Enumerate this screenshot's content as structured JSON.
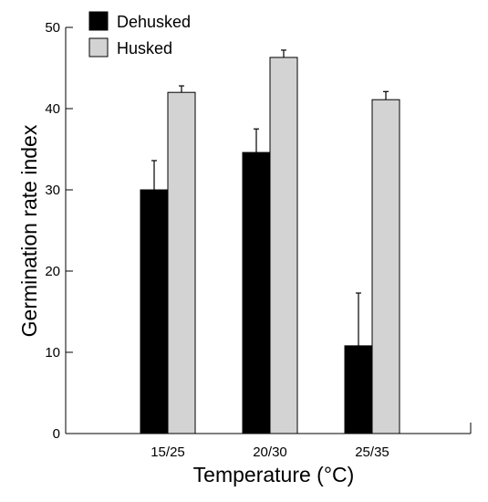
{
  "chart_data": {
    "type": "bar",
    "title": "",
    "xlabel": "Temperature (°C)",
    "ylabel": "Germination rate index",
    "categories": [
      "15/25",
      "20/30",
      "25/35"
    ],
    "ylim": [
      0,
      50
    ],
    "yticks": [
      0,
      10,
      20,
      30,
      40,
      50
    ],
    "grid": false,
    "legend": "top-left",
    "series": [
      {
        "name": "Dehusked",
        "color": "#000000",
        "values": [
          30.0,
          34.6,
          10.8
        ],
        "errors": [
          3.6,
          2.9,
          6.5
        ]
      },
      {
        "name": "Husked",
        "color": "#d3d3d3",
        "values": [
          42.0,
          46.3,
          41.1
        ],
        "errors": [
          0.8,
          0.9,
          1.0
        ]
      }
    ]
  }
}
